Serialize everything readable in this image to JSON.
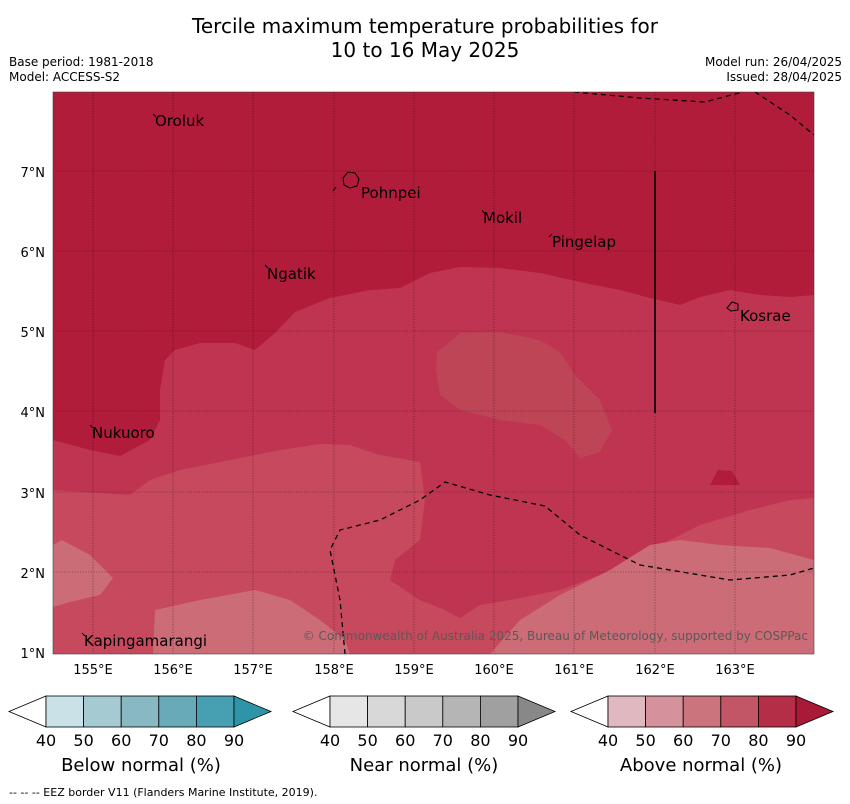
{
  "header": {
    "title_line1": "Tercile maximum temperature probabilities for",
    "title_line2": "10 to 16 May 2025",
    "base_period": "Base period: 1981-2018",
    "model": "Model: ACCESS-S2",
    "model_run": "Model run: 26/04/2025",
    "issued": "Issued: 28/04/2025"
  },
  "map": {
    "lat_labels": [
      "7°N",
      "6°N",
      "5°N",
      "4°N",
      "3°N",
      "2°N",
      "1°N"
    ],
    "lon_labels": [
      "155°E",
      "156°E",
      "157°E",
      "158°E",
      "159°E",
      "160°E",
      "161°E",
      "162°E",
      "163°E"
    ],
    "places": [
      "Oroluk",
      "Pohnpei",
      "Mokil",
      "Pingelap",
      "Ngatik",
      "Kosrae",
      "Nukuoro",
      "Kapingamarangi"
    ],
    "copyright": "© Commonwealth of Australia 2025, Bureau of Meteorology, supported by COSPPac",
    "colors": {
      "above_80": "#b11c3a",
      "above_70": "#c03550",
      "above_60": "#c74a5e",
      "above_50": "#cb6d78"
    }
  },
  "legends": [
    {
      "label": "Below normal (%)",
      "ticks": [
        "40",
        "50",
        "60",
        "70",
        "80",
        "90"
      ],
      "colors": [
        "#ffffff",
        "#c9e1e7",
        "#a6cad1",
        "#88b8c1",
        "#68aab7",
        "#479fb2",
        "#2e95a9"
      ]
    },
    {
      "label": "Near normal (%)",
      "ticks": [
        "40",
        "50",
        "60",
        "70",
        "80",
        "90"
      ],
      "colors": [
        "#ffffff",
        "#e6e6e6",
        "#d8d8d8",
        "#c9c9c9",
        "#b5b5b5",
        "#a0a0a0",
        "#888888"
      ]
    },
    {
      "label": "Above normal (%)",
      "ticks": [
        "40",
        "50",
        "60",
        "70",
        "80",
        "90"
      ],
      "colors": [
        "#ffffff",
        "#e0b8c0",
        "#d6929c",
        "#cc747e",
        "#c35666",
        "#b52e48",
        "#a91a38"
      ]
    }
  ],
  "footer": "--  --  -- EEZ border V11 (Flanders Marine Institute, 2019)."
}
